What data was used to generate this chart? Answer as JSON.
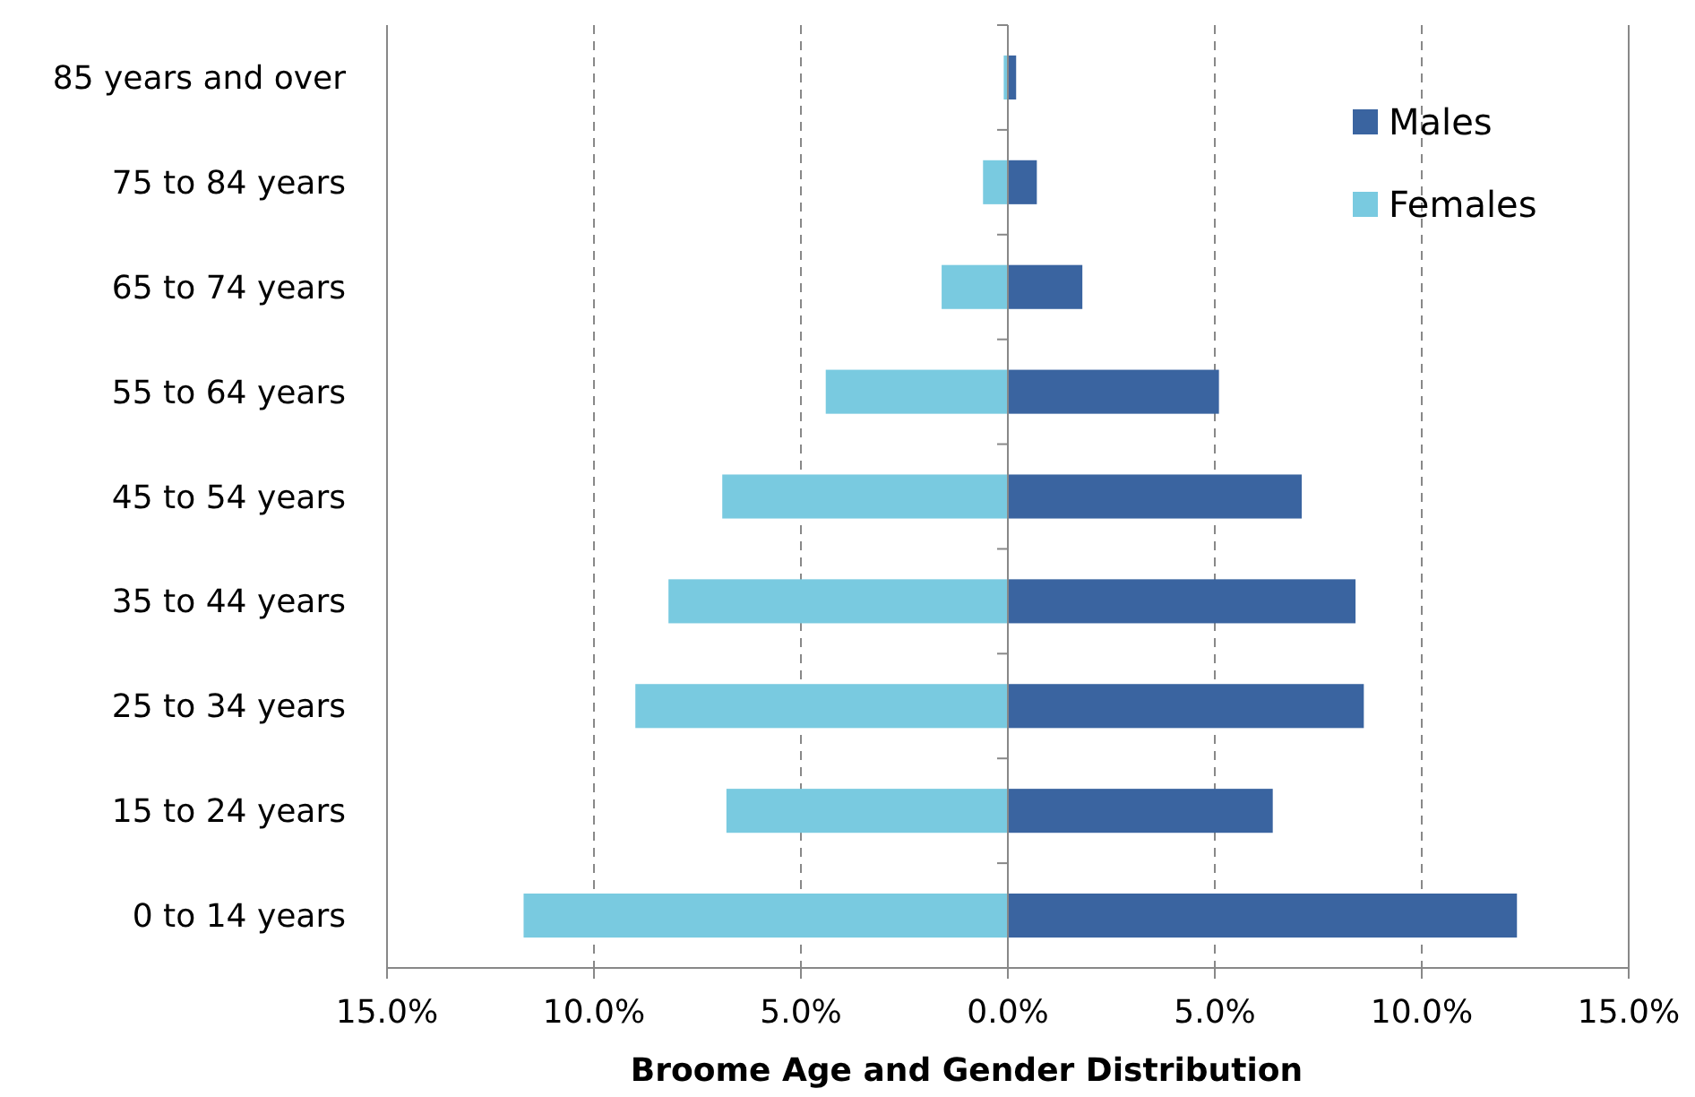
{
  "chart_data": {
    "type": "bar",
    "orientation": "horizontal",
    "title": "Broome Age and Gender Distribution",
    "categories": [
      "85 years and over",
      "75 to 84 years",
      "65 to 74 years",
      "55 to 64 years",
      "45 to 54 years",
      "35 to 44 years",
      "25 to 34 years",
      "15 to 24 years",
      "0 to 14 years"
    ],
    "series": [
      {
        "name": "Males",
        "color": "#3a64a0",
        "values": [
          0.2,
          0.7,
          1.8,
          5.1,
          7.1,
          8.4,
          8.6,
          6.4,
          12.3
        ]
      },
      {
        "name": "Females",
        "color": "#79cae0",
        "values": [
          -0.1,
          -0.6,
          -1.6,
          -4.4,
          -6.9,
          -8.2,
          -9.0,
          -6.8,
          -11.7
        ]
      }
    ],
    "xlim": [
      -15,
      15
    ],
    "xticks": [
      {
        "value": -15,
        "label": "15.0%"
      },
      {
        "value": -10,
        "label": "10.0%"
      },
      {
        "value": -5,
        "label": "5.0%"
      },
      {
        "value": 0,
        "label": "0.0%"
      },
      {
        "value": 5,
        "label": "5.0%"
      },
      {
        "value": 10,
        "label": "10.0%"
      },
      {
        "value": 15,
        "label": "15.0%"
      }
    ],
    "stacked": true,
    "grid": "x",
    "legend": "top right"
  }
}
